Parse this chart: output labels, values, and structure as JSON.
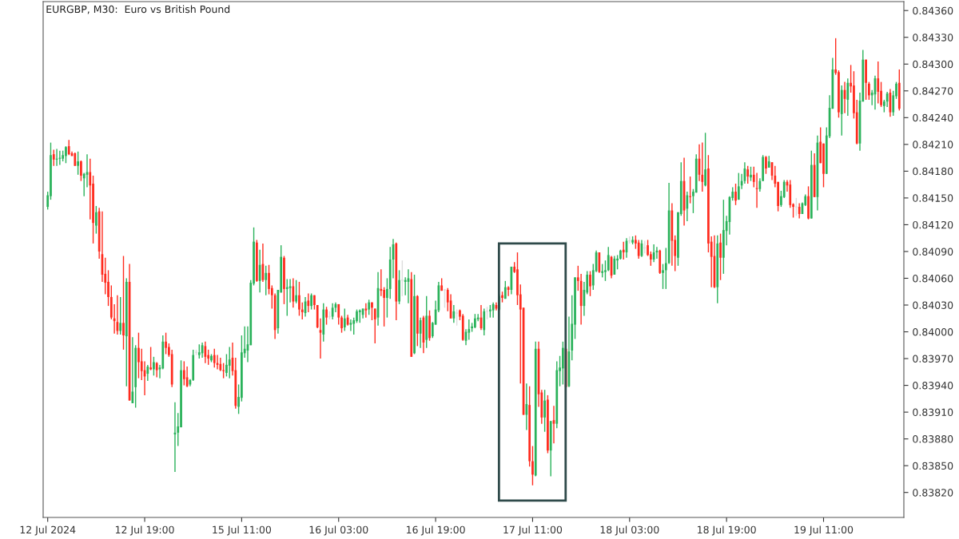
{
  "chart_data": {
    "type": "candlestick",
    "title": "EURGBP, M30:  Euro vs British Pound",
    "categories": [
      "12 Jul 2024",
      null,
      null,
      null,
      null,
      null,
      null,
      null,
      null,
      null,
      null,
      null,
      null,
      null,
      null,
      null,
      null,
      null,
      null,
      null,
      null,
      null,
      null,
      null,
      null,
      null,
      null,
      null,
      null,
      null,
      null,
      null,
      "12 Jul 19:00",
      null,
      null,
      null,
      null,
      null,
      null,
      null,
      null,
      null,
      null,
      null,
      null,
      null,
      null,
      null,
      null,
      null,
      null,
      null,
      null,
      null,
      null,
      null,
      null,
      null,
      null,
      null,
      null,
      null,
      null,
      null,
      "15 Jul 11:00",
      null,
      null,
      null,
      null,
      null,
      null,
      null,
      null,
      null,
      null,
      null,
      null,
      null,
      null,
      null,
      null,
      null,
      null,
      null,
      null,
      null,
      null,
      null,
      null,
      null,
      null,
      null,
      null,
      null,
      null,
      null,
      "16 Jul 03:00",
      null,
      null,
      null,
      null,
      null,
      null,
      null,
      null,
      null,
      null,
      null,
      null,
      null,
      null,
      null,
      null,
      null,
      null,
      null,
      null,
      null,
      null,
      null,
      null,
      null,
      null,
      null,
      null,
      null,
      null,
      null,
      "16 Jul 19:00",
      null,
      null,
      null,
      null,
      null,
      null,
      null,
      null,
      null,
      null,
      null,
      null,
      null,
      null,
      null,
      null,
      null,
      null,
      null,
      null,
      null,
      null,
      null,
      null,
      null,
      null,
      null,
      null,
      null,
      null,
      null,
      "17 Jul 11:00",
      null,
      null,
      null,
      null,
      null,
      null,
      null,
      null,
      null,
      null,
      null,
      null,
      null,
      null,
      null,
      null,
      null,
      null,
      null,
      null,
      null,
      null,
      null,
      null,
      null,
      null,
      null,
      null,
      null,
      null,
      null,
      "18 Jul 03:00",
      null,
      null,
      null,
      null,
      null,
      null,
      null,
      null,
      null,
      null,
      null,
      null,
      null,
      null,
      null,
      null,
      null,
      null,
      null,
      null,
      null,
      null,
      null,
      null,
      null,
      null,
      null,
      null,
      null,
      null,
      null,
      "18 Jul 19:00",
      null,
      null,
      null,
      null,
      null,
      null,
      null,
      null,
      null,
      null,
      null,
      null,
      null,
      null,
      null,
      null,
      null,
      null,
      null,
      null,
      null,
      null,
      null,
      null,
      null,
      null,
      null,
      null,
      null,
      null,
      null,
      "19 Jul 11:00",
      null,
      null,
      null,
      null,
      null,
      null,
      null,
      null,
      null,
      null,
      null,
      null,
      null,
      null,
      null,
      null,
      null,
      null,
      null,
      null,
      null,
      null,
      null,
      null,
      null
    ],
    "ohlc": [
      [
        0.8414,
        0.84157,
        0.84137,
        0.84153
      ],
      [
        0.84152,
        0.84212,
        0.84148,
        0.84198
      ],
      [
        0.84199,
        0.84204,
        0.84186,
        0.84193
      ],
      [
        0.84193,
        0.84205,
        0.84186,
        0.84194
      ],
      [
        0.84194,
        0.84203,
        0.84187,
        0.84195
      ],
      [
        0.84194,
        0.84203,
        0.84191,
        0.84198
      ],
      [
        0.84197,
        0.84208,
        0.84189,
        0.84207
      ],
      [
        0.84208,
        0.84215,
        0.84198,
        0.84199
      ],
      [
        0.842,
        0.84202,
        0.84197,
        0.84197
      ],
      [
        0.842,
        0.84201,
        0.84186,
        0.84186
      ],
      [
        0.84186,
        0.84202,
        0.84176,
        0.84191
      ],
      [
        0.84191,
        0.84192,
        0.84169,
        0.84175
      ],
      [
        0.84172,
        0.84178,
        0.84152,
        0.84177
      ],
      [
        0.84176,
        0.84199,
        0.84162,
        0.84179
      ],
      [
        0.84179,
        0.84194,
        0.84126,
        0.84164
      ],
      [
        0.84166,
        0.84175,
        0.84099,
        0.84122
      ],
      [
        0.84119,
        0.84141,
        0.8411,
        0.84134
      ],
      [
        0.84135,
        0.84139,
        0.84082,
        0.8409
      ],
      [
        0.84087,
        0.84135,
        0.84056,
        0.84064
      ],
      [
        0.84065,
        0.84083,
        0.84042,
        0.84055
      ],
      [
        0.84056,
        0.84069,
        0.84029,
        0.84039
      ],
      [
        0.84039,
        0.84052,
        0.84014,
        0.84016
      ],
      [
        0.84015,
        0.84031,
        0.83998,
        0.84012
      ],
      [
        0.84011,
        0.84041,
        0.83997,
        0.84001
      ],
      [
        0.84001,
        0.84039,
        0.83997,
        0.8401
      ],
      [
        0.8401,
        0.84085,
        0.8398,
        0.83996
      ],
      [
        0.83995,
        0.8406,
        0.83939,
        0.84056
      ],
      [
        0.84056,
        0.84076,
        0.83923,
        0.83923
      ],
      [
        0.8392,
        0.83994,
        0.8392,
        0.83933
      ],
      [
        0.83938,
        0.83985,
        0.83915,
        0.83982
      ],
      [
        0.83982,
        0.83999,
        0.83948,
        0.83966
      ],
      [
        0.83967,
        0.83981,
        0.83946,
        0.83956
      ],
      [
        0.83957,
        0.83967,
        0.83929,
        0.8395
      ],
      [
        0.83953,
        0.83963,
        0.83945,
        0.83961
      ],
      [
        0.8396,
        0.83983,
        0.83957,
        0.83958
      ],
      [
        0.83958,
        0.83972,
        0.83951,
        0.83966
      ],
      [
        0.83965,
        0.83966,
        0.83949,
        0.83957
      ],
      [
        0.83958,
        0.83963,
        0.83948,
        0.8396
      ],
      [
        0.83959,
        0.83996,
        0.83958,
        0.83989
      ],
      [
        0.83989,
        0.83999,
        0.83975,
        0.83982
      ],
      [
        0.83983,
        0.83987,
        0.83972,
        0.83974
      ],
      [
        0.83975,
        0.8398,
        0.83938,
        0.83941
      ],
      [
        0.83885,
        0.83921,
        0.83843,
        0.83887
      ],
      [
        0.83887,
        0.83909,
        0.83872,
        0.83894
      ],
      [
        0.83893,
        0.83968,
        0.83893,
        0.83957
      ],
      [
        0.83957,
        0.83967,
        0.8394,
        0.83947
      ],
      [
        0.83949,
        0.83961,
        0.83938,
        0.83939
      ],
      [
        0.83941,
        0.83947,
        0.83939,
        0.83946
      ],
      [
        0.83946,
        0.8398,
        0.83945,
        0.83974
      ],
      [
        0.83977,
        0.8398,
        0.83974,
        0.83977
      ],
      [
        0.83974,
        0.83986,
        0.8397,
        0.83977
      ],
      [
        0.83976,
        0.83988,
        0.83971,
        0.83985
      ],
      [
        0.83984,
        0.83989,
        0.83965,
        0.83972
      ],
      [
        0.83974,
        0.8398,
        0.83963,
        0.8397
      ],
      [
        0.83968,
        0.83975,
        0.83966,
        0.83973
      ],
      [
        0.83974,
        0.83981,
        0.8396,
        0.83965
      ],
      [
        0.83965,
        0.83974,
        0.83958,
        0.83963
      ],
      [
        0.83964,
        0.83971,
        0.83956,
        0.83957
      ],
      [
        0.83957,
        0.83965,
        0.83948,
        0.83956
      ],
      [
        0.83954,
        0.83975,
        0.8395,
        0.83963
      ],
      [
        0.83962,
        0.83983,
        0.83948,
        0.83969
      ],
      [
        0.83971,
        0.83988,
        0.83951,
        0.83956
      ],
      [
        0.83957,
        0.83971,
        0.83914,
        0.83917
      ],
      [
        0.83916,
        0.83941,
        0.83908,
        0.83927
      ],
      [
        0.83926,
        0.83996,
        0.83922,
        0.83977
      ],
      [
        0.83976,
        0.84006,
        0.83971,
        0.83981
      ],
      [
        0.83979,
        0.84006,
        0.83966,
        0.83986
      ],
      [
        0.83985,
        0.84058,
        0.83985,
        0.84055
      ],
      [
        0.84054,
        0.84117,
        0.84052,
        0.84101
      ],
      [
        0.841,
        0.84103,
        0.84056,
        0.84057
      ],
      [
        0.84057,
        0.84092,
        0.84044,
        0.84075
      ],
      [
        0.84076,
        0.84099,
        0.84056,
        0.84058
      ],
      [
        0.84058,
        0.84074,
        0.84041,
        0.84066
      ],
      [
        0.84066,
        0.84075,
        0.84042,
        0.84048
      ],
      [
        0.84049,
        0.84052,
        0.84026,
        0.84041
      ],
      [
        0.84041,
        0.84043,
        0.83992,
        0.84002
      ],
      [
        0.84004,
        0.84047,
        0.83998,
        0.84047
      ],
      [
        0.84044,
        0.84097,
        0.84044,
        0.84084
      ],
      [
        0.84083,
        0.84085,
        0.84031,
        0.84048
      ],
      [
        0.84048,
        0.84059,
        0.84018,
        0.8405
      ],
      [
        0.84049,
        0.84059,
        0.84033,
        0.84051
      ],
      [
        0.84051,
        0.8406,
        0.84027,
        0.84034
      ],
      [
        0.84034,
        0.84058,
        0.84032,
        0.84041
      ],
      [
        0.84041,
        0.84056,
        0.84018,
        0.84025
      ],
      [
        0.84025,
        0.84033,
        0.84014,
        0.84022
      ],
      [
        0.84021,
        0.84039,
        0.84017,
        0.84034
      ],
      [
        0.84035,
        0.84043,
        0.84022,
        0.84029
      ],
      [
        0.84029,
        0.84043,
        0.84025,
        0.84041
      ],
      [
        0.84041,
        0.84041,
        0.84025,
        0.8403
      ],
      [
        0.8403,
        0.8403,
        0.84004,
        0.84005
      ],
      [
        0.84002,
        0.84015,
        0.8397,
        0.83999
      ],
      [
        0.83997,
        0.84032,
        0.83989,
        0.84025
      ],
      [
        0.84025,
        0.84028,
        0.84008,
        0.84016
      ],
      [
        0.84017,
        0.84023,
        0.84014,
        0.84017
      ],
      [
        0.84017,
        0.84032,
        0.84014,
        0.84027
      ],
      [
        0.84027,
        0.84033,
        0.84022,
        0.84031
      ],
      [
        0.84031,
        0.84031,
        0.84008,
        0.84016
      ],
      [
        0.84016,
        0.84018,
        0.83999,
        0.84004
      ],
      [
        0.84005,
        0.84026,
        0.84001,
        0.84015
      ],
      [
        0.84016,
        0.84019,
        0.84007,
        0.84008
      ],
      [
        0.84008,
        0.84014,
        0.84001,
        0.8401
      ],
      [
        0.84009,
        0.84016,
        0.83997,
        0.84013
      ],
      [
        0.84012,
        0.84025,
        0.8401,
        0.84023
      ],
      [
        0.84022,
        0.84025,
        0.8401,
        0.84024
      ],
      [
        0.84019,
        0.84026,
        0.84015,
        0.84026
      ],
      [
        0.84026,
        0.84032,
        0.84016,
        0.84024
      ],
      [
        0.84025,
        0.84036,
        0.84019,
        0.84033
      ],
      [
        0.84033,
        0.84033,
        0.84013,
        0.84027
      ],
      [
        0.84026,
        0.84026,
        0.83987,
        0.84014
      ],
      [
        0.84016,
        0.84067,
        0.84007,
        0.84049
      ],
      [
        0.84048,
        0.8407,
        0.8404,
        0.84046
      ],
      [
        0.84047,
        0.8405,
        0.84006,
        0.84038
      ],
      [
        0.84038,
        0.8406,
        0.84016,
        0.84048
      ],
      [
        0.84048,
        0.84095,
        0.84037,
        0.84081
      ],
      [
        0.84081,
        0.84104,
        0.8406,
        0.84098
      ],
      [
        0.84099,
        0.841,
        0.84013,
        0.84034
      ],
      [
        0.84034,
        0.84069,
        0.84031,
        0.84058
      ],
      [
        0.84058,
        0.8408,
        0.8404,
        0.84058
      ],
      [
        0.84056,
        0.84061,
        0.84041,
        0.84058
      ],
      [
        0.84056,
        0.8407,
        0.84032,
        0.8406
      ],
      [
        0.84059,
        0.84067,
        0.83972,
        0.83972
      ],
      [
        0.83976,
        0.84064,
        0.83975,
        0.8404
      ],
      [
        0.8404,
        0.84041,
        0.83984,
        0.83998
      ],
      [
        0.83998,
        0.84016,
        0.83982,
        0.84013
      ],
      [
        0.84016,
        0.84018,
        0.83976,
        0.83988
      ],
      [
        0.83991,
        0.8404,
        0.83982,
        0.84018
      ],
      [
        0.84018,
        0.84024,
        0.8399,
        0.83993
      ],
      [
        0.83995,
        0.84011,
        0.83993,
        0.8401
      ],
      [
        0.84008,
        0.84035,
        0.84008,
        0.84025
      ],
      [
        0.84024,
        0.84056,
        0.84022,
        0.84052
      ],
      [
        0.84052,
        0.8406,
        0.84046,
        0.84046
      ],
      [
        0.84047,
        0.84048,
        0.84027,
        0.84047
      ],
      [
        0.84047,
        0.84049,
        0.84023,
        0.84033
      ],
      [
        0.84035,
        0.84042,
        0.84015,
        0.84015
      ],
      [
        0.84015,
        0.8403,
        0.8401,
        0.84023
      ],
      [
        0.84021,
        0.84025,
        0.84007,
        0.84021
      ],
      [
        0.84024,
        0.84025,
        0.84013,
        0.84017
      ],
      [
        0.84018,
        0.8402,
        0.8399,
        0.83991
      ],
      [
        0.8399,
        0.84003,
        0.83985,
        0.84
      ],
      [
        0.83999,
        0.84014,
        0.83991,
        0.84003
      ],
      [
        0.84004,
        0.8401,
        0.84,
        0.84006
      ],
      [
        0.84005,
        0.8402,
        0.84004,
        0.84015
      ],
      [
        0.84014,
        0.8402,
        0.84012,
        0.84016
      ],
      [
        0.84016,
        0.8403,
        0.84002,
        0.84004
      ],
      [
        0.84002,
        0.84026,
        0.83996,
        0.84023
      ],
      [
        0.84023,
        0.84028,
        0.84014,
        0.84023
      ],
      [
        0.84023,
        0.8403,
        0.84016,
        0.84025
      ],
      [
        0.84024,
        0.84033,
        0.84016,
        0.84031
      ],
      [
        0.8403,
        0.84033,
        0.84024,
        0.84026
      ],
      [
        0.84025,
        0.84042,
        0.84024,
        0.8404
      ],
      [
        0.84041,
        0.84045,
        0.84033,
        0.84038
      ],
      [
        0.84037,
        0.84057,
        0.84037,
        0.8405
      ],
      [
        0.8405,
        0.84051,
        0.8404,
        0.84047
      ],
      [
        0.84047,
        0.84073,
        0.84042,
        0.84073
      ],
      [
        0.84073,
        0.84078,
        0.84066,
        0.84067
      ],
      [
        0.8407,
        0.84089,
        0.8403,
        0.84041
      ],
      [
        0.84042,
        0.84053,
        0.83942,
        0.84025
      ],
      [
        0.84027,
        0.84027,
        0.83907,
        0.83907
      ],
      [
        0.83907,
        0.83942,
        0.8389,
        0.83919
      ],
      [
        0.83918,
        0.83939,
        0.83849,
        0.83855
      ],
      [
        0.83855,
        0.83872,
        0.83828,
        0.8384
      ],
      [
        0.83839,
        0.83989,
        0.83838,
        0.83981
      ],
      [
        0.83981,
        0.83989,
        0.83916,
        0.8393
      ],
      [
        0.83932,
        0.83935,
        0.83897,
        0.83904
      ],
      [
        0.83904,
        0.83935,
        0.83888,
        0.83923
      ],
      [
        0.83924,
        0.83929,
        0.83864,
        0.83867
      ],
      [
        0.83867,
        0.839,
        0.83838,
        0.839
      ],
      [
        0.83901,
        0.83917,
        0.83875,
        0.83897
      ],
      [
        0.83897,
        0.83967,
        0.83892,
        0.83957
      ],
      [
        0.83956,
        0.83973,
        0.83939,
        0.8396
      ],
      [
        0.83959,
        0.83989,
        0.83941,
        0.83982
      ],
      [
        0.83981,
        0.83981,
        0.83938,
        0.83938
      ],
      [
        0.83939,
        0.84017,
        0.83938,
        0.83978
      ],
      [
        0.83979,
        0.84041,
        0.83968,
        0.84009
      ],
      [
        0.84008,
        0.84061,
        0.83992,
        0.84061
      ],
      [
        0.84061,
        0.84074,
        0.84046,
        0.84057
      ],
      [
        0.84057,
        0.84065,
        0.84008,
        0.84029
      ],
      [
        0.84029,
        0.84056,
        0.84018,
        0.84047
      ],
      [
        0.84044,
        0.84068,
        0.84042,
        0.84064
      ],
      [
        0.84064,
        0.84068,
        0.8404,
        0.84051
      ],
      [
        0.84052,
        0.84076,
        0.84047,
        0.84069
      ],
      [
        0.84068,
        0.84091,
        0.84067,
        0.84089
      ],
      [
        0.84089,
        0.84089,
        0.84066,
        0.84067
      ],
      [
        0.84066,
        0.84076,
        0.84061,
        0.84068
      ],
      [
        0.84067,
        0.8408,
        0.84057,
        0.84069
      ],
      [
        0.84069,
        0.84095,
        0.84068,
        0.84086
      ],
      [
        0.84084,
        0.84085,
        0.8406,
        0.84063
      ],
      [
        0.84064,
        0.84085,
        0.84064,
        0.84082
      ],
      [
        0.8408,
        0.84086,
        0.8407,
        0.84082
      ],
      [
        0.84082,
        0.84092,
        0.84081,
        0.84091
      ],
      [
        0.84092,
        0.84101,
        0.84081,
        0.84089
      ],
      [
        0.84089,
        0.84105,
        0.84083,
        0.84102
      ],
      [
        0.84102,
        0.84107,
        0.84099,
        0.84102
      ],
      [
        0.841,
        0.84107,
        0.84098,
        0.84103
      ],
      [
        0.84103,
        0.84108,
        0.84093,
        0.84099
      ],
      [
        0.841,
        0.84103,
        0.84082,
        0.84085
      ],
      [
        0.84085,
        0.84103,
        0.84084,
        0.84099
      ],
      [
        0.84094,
        0.84102,
        0.84088,
        0.84094
      ],
      [
        0.84097,
        0.84103,
        0.84085,
        0.84086
      ],
      [
        0.84087,
        0.8409,
        0.84074,
        0.84081
      ],
      [
        0.84081,
        0.84098,
        0.84078,
        0.84089
      ],
      [
        0.84089,
        0.84095,
        0.84082,
        0.84091
      ],
      [
        0.84091,
        0.84092,
        0.84065,
        0.84066
      ],
      [
        0.84066,
        0.84076,
        0.84048,
        0.84069
      ],
      [
        0.84069,
        0.84094,
        0.84048,
        0.84077
      ],
      [
        0.84077,
        0.84167,
        0.84076,
        0.84136
      ],
      [
        0.84136,
        0.84144,
        0.84074,
        0.84102
      ],
      [
        0.84103,
        0.84108,
        0.84068,
        0.84085
      ],
      [
        0.84083,
        0.84134,
        0.84074,
        0.84134
      ],
      [
        0.84132,
        0.8419,
        0.8413,
        0.84169
      ],
      [
        0.84169,
        0.84195,
        0.84119,
        0.84136
      ],
      [
        0.84138,
        0.84157,
        0.84124,
        0.84153
      ],
      [
        0.84152,
        0.84174,
        0.84144,
        0.84151
      ],
      [
        0.84152,
        0.8416,
        0.84133,
        0.84157
      ],
      [
        0.84156,
        0.84199,
        0.84156,
        0.84194
      ],
      [
        0.84194,
        0.8421,
        0.84169,
        0.84176
      ],
      [
        0.84176,
        0.84212,
        0.84157,
        0.84168
      ],
      [
        0.84164,
        0.84223,
        0.84163,
        0.84182
      ],
      [
        0.84183,
        0.84198,
        0.84089,
        0.84099
      ],
      [
        0.84101,
        0.84107,
        0.8405,
        0.84084
      ],
      [
        0.84085,
        0.84108,
        0.84049,
        0.8405
      ],
      [
        0.8405,
        0.84108,
        0.84032,
        0.84099
      ],
      [
        0.841,
        0.8411,
        0.84058,
        0.84083
      ],
      [
        0.84083,
        0.84148,
        0.84065,
        0.84114
      ],
      [
        0.84113,
        0.8413,
        0.84097,
        0.84124
      ],
      [
        0.84123,
        0.84152,
        0.84109,
        0.84151
      ],
      [
        0.8415,
        0.84162,
        0.84147,
        0.84157
      ],
      [
        0.84157,
        0.84166,
        0.84142,
        0.84147
      ],
      [
        0.84148,
        0.84178,
        0.84148,
        0.84163
      ],
      [
        0.84164,
        0.84177,
        0.8416,
        0.84169
      ],
      [
        0.84169,
        0.8419,
        0.84166,
        0.84183
      ],
      [
        0.84182,
        0.84186,
        0.84166,
        0.84174
      ],
      [
        0.84173,
        0.84185,
        0.84169,
        0.84176
      ],
      [
        0.84176,
        0.84185,
        0.84162,
        0.84168
      ],
      [
        0.84161,
        0.84178,
        0.84139,
        0.8416
      ],
      [
        0.8416,
        0.84172,
        0.84157,
        0.84169
      ],
      [
        0.84169,
        0.84198,
        0.84169,
        0.84196
      ],
      [
        0.84196,
        0.84197,
        0.84177,
        0.84183
      ],
      [
        0.84184,
        0.84197,
        0.84184,
        0.84191
      ],
      [
        0.8419,
        0.8419,
        0.8417,
        0.84175
      ],
      [
        0.84175,
        0.84186,
        0.84162,
        0.84166
      ],
      [
        0.84168,
        0.84168,
        0.84135,
        0.84141
      ],
      [
        0.84142,
        0.84158,
        0.8414,
        0.84152
      ],
      [
        0.84151,
        0.8417,
        0.8415,
        0.84168
      ],
      [
        0.84168,
        0.8417,
        0.84157,
        0.84164
      ],
      [
        0.84165,
        0.8417,
        0.84139,
        0.84142
      ],
      [
        0.84143,
        0.84144,
        0.84128,
        0.8414
      ],
      [
        0.8414,
        0.8415,
        0.8413,
        0.8414
      ],
      [
        0.8414,
        0.84144,
        0.84127,
        0.84132
      ],
      [
        0.84132,
        0.84145,
        0.84132,
        0.84144
      ],
      [
        0.84142,
        0.84154,
        0.84141,
        0.84152
      ],
      [
        0.84152,
        0.84163,
        0.84126,
        0.84127
      ],
      [
        0.84127,
        0.84203,
        0.84127,
        0.84187
      ],
      [
        0.84187,
        0.842,
        0.84151,
        0.84151
      ],
      [
        0.84151,
        0.8422,
        0.84136,
        0.84212
      ],
      [
        0.84213,
        0.84229,
        0.84189,
        0.84189
      ],
      [
        0.84211,
        0.84211,
        0.84162,
        0.84177
      ],
      [
        0.84177,
        0.84229,
        0.84177,
        0.8422
      ],
      [
        0.84219,
        0.84265,
        0.84217,
        0.84251
      ],
      [
        0.8425,
        0.84307,
        0.8425,
        0.84294
      ],
      [
        0.84294,
        0.84329,
        0.84288,
        0.8429
      ],
      [
        0.84291,
        0.84293,
        0.8424,
        0.84246
      ],
      [
        0.84244,
        0.84276,
        0.8422,
        0.84271
      ],
      [
        0.84271,
        0.8428,
        0.84245,
        0.84261
      ],
      [
        0.8426,
        0.84284,
        0.84242,
        0.84279
      ],
      [
        0.84279,
        0.84299,
        0.84268,
        0.84275
      ],
      [
        0.84276,
        0.84292,
        0.84239,
        0.84245
      ],
      [
        0.84246,
        0.8426,
        0.8421,
        0.84211
      ],
      [
        0.84211,
        0.84268,
        0.84203,
        0.84259
      ],
      [
        0.84258,
        0.84316,
        0.84258,
        0.84305
      ],
      [
        0.84305,
        0.84305,
        0.8426,
        0.84279
      ],
      [
        0.84278,
        0.8428,
        0.8426,
        0.84265
      ],
      [
        0.84265,
        0.84271,
        0.84254,
        0.84268
      ],
      [
        0.84266,
        0.84287,
        0.84249,
        0.84284
      ],
      [
        0.84284,
        0.84303,
        0.84256,
        0.84269
      ],
      [
        0.8427,
        0.8428,
        0.84252,
        0.84254
      ],
      [
        0.84253,
        0.8426,
        0.84246,
        0.84258
      ],
      [
        0.84258,
        0.84269,
        0.84252,
        0.84267
      ],
      [
        0.84268,
        0.84272,
        0.84241,
        0.84246
      ],
      [
        0.84246,
        0.8427,
        0.84242,
        0.84265
      ],
      [
        0.84264,
        0.8428,
        0.84261,
        0.84278
      ],
      [
        0.84279,
        0.84294,
        0.84248,
        0.8425
      ]
    ],
    "colors": [
      "#2ab25a",
      "#2ab25a",
      "#ff2b1e",
      "#2ab25a",
      "#2ab25a",
      "#2ab25a",
      "#2ab25a",
      "#ff2b1e",
      "#ff2b1e",
      "#ff2b1e",
      "#2ab25a",
      "#ff2b1e",
      "#2ab25a",
      "#2ab25a",
      "#ff2b1e",
      "#ff2b1e",
      "#2ab25a",
      "#ff2b1e",
      "#ff2b1e",
      "#ff2b1e",
      "#ff2b1e",
      "#ff2b1e",
      "#ff2b1e",
      "#ff2b1e",
      "#2ab25a",
      "#ff2b1e",
      "#2ab25a",
      "#ff2b1e",
      "#2ab25a",
      "#2ab25a",
      "#ff2b1e",
      "#ff2b1e",
      "#ff2b1e",
      "#2ab25a",
      "#ff2b1e",
      "#2ab25a",
      "#ff2b1e",
      "#2ab25a",
      "#2ab25a",
      "#ff2b1e",
      "#ff2b1e",
      "#ff2b1e",
      "#2ab25a",
      "#2ab25a",
      "#2ab25a",
      "#ff2b1e",
      "#ff2b1e",
      "#2ab25a",
      "#2ab25a",
      "#dcdcdc",
      "#2ab25a",
      "#2ab25a",
      "#ff2b1e",
      "#ff2b1e",
      "#2ab25a",
      "#ff2b1e",
      "#ff2b1e",
      "#ff2b1e",
      "#ff2b1e",
      "#2ab25a",
      "#2ab25a",
      "#ff2b1e",
      "#ff2b1e",
      "#2ab25a",
      "#2ab25a",
      "#2ab25a",
      "#2ab25a",
      "#2ab25a",
      "#2ab25a",
      "#ff2b1e",
      "#2ab25a",
      "#ff2b1e",
      "#2ab25a",
      "#ff2b1e",
      "#ff2b1e",
      "#ff2b1e",
      "#2ab25a",
      "#2ab25a",
      "#ff2b1e",
      "#2ab25a",
      "#2ab25a",
      "#ff2b1e",
      "#2ab25a",
      "#ff2b1e",
      "#ff2b1e",
      "#2ab25a",
      "#ff2b1e",
      "#2ab25a",
      "#ff2b1e",
      "#ff2b1e",
      "#ff2b1e",
      "#2ab25a",
      "#ff2b1e",
      "#dcdcdc",
      "#2ab25a",
      "#2ab25a",
      "#ff2b1e",
      "#ff2b1e",
      "#2ab25a",
      "#ff2b1e",
      "#2ab25a",
      "#2ab25a",
      "#2ab25a",
      "#2ab25a",
      "#2ab25a",
      "#ff2b1e",
      "#2ab25a",
      "#ff2b1e",
      "#ff2b1e",
      "#2ab25a",
      "#ff2b1e",
      "#ff2b1e",
      "#2ab25a",
      "#2ab25a",
      "#2ab25a",
      "#ff2b1e",
      "#2ab25a",
      "#dcdcdc",
      "#2ab25a",
      "#2ab25a",
      "#ff2b1e",
      "#2ab25a",
      "#ff2b1e",
      "#2ab25a",
      "#ff2b1e",
      "#2ab25a",
      "#ff2b1e",
      "#2ab25a",
      "#2ab25a",
      "#2ab25a",
      "#ff2b1e",
      "#dcdcdc",
      "#ff2b1e",
      "#ff2b1e",
      "#2ab25a",
      "#dcdcdc",
      "#ff2b1e",
      "#ff2b1e",
      "#2ab25a",
      "#2ab25a",
      "#2ab25a",
      "#2ab25a",
      "#2ab25a",
      "#ff2b1e",
      "#2ab25a",
      "#dcdcdc",
      "#2ab25a",
      "#2ab25a",
      "#ff2b1e",
      "#2ab25a",
      "#ff2b1e",
      "#2ab25a",
      "#ff2b1e",
      "#2ab25a",
      "#ff2b1e",
      "#ff2b1e",
      "#ff2b1e",
      "#ff2b1e",
      "#2ab25a",
      "#ff2b1e",
      "#ff2b1e",
      "#2ab25a",
      "#ff2b1e",
      "#ff2b1e",
      "#2ab25a",
      "#ff2b1e",
      "#2ab25a",
      "#ff2b1e",
      "#2ab25a",
      "#2ab25a",
      "#2ab25a",
      "#ff2b1e",
      "#2ab25a",
      "#2ab25a",
      "#2ab25a",
      "#ff2b1e",
      "#ff2b1e",
      "#2ab25a",
      "#2ab25a",
      "#ff2b1e",
      "#2ab25a",
      "#2ab25a",
      "#ff2b1e",
      "#2ab25a",
      "#2ab25a",
      "#2ab25a",
      "#ff2b1e",
      "#2ab25a",
      "#2ab25a",
      "#2ab25a",
      "#ff2b1e",
      "#2ab25a",
      "#dcdcdc",
      "#2ab25a",
      "#ff2b1e",
      "#ff2b1e",
      "#2ab25a",
      "#dcdcdc",
      "#ff2b1e",
      "#ff2b1e",
      "#2ab25a",
      "#2ab25a",
      "#ff2b1e",
      "#2ab25a",
      "#2ab25a",
      "#2ab25a",
      "#ff2b1e",
      "#ff2b1e",
      "#2ab25a",
      "#2ab25a",
      "#ff2b1e",
      "#2ab25a",
      "#ff2b1e",
      "#2ab25a",
      "#2ab25a",
      "#ff2b1e",
      "#ff2b1e",
      "#2ab25a",
      "#ff2b1e",
      "#ff2b1e",
      "#ff2b1e",
      "#2ab25a",
      "#ff2b1e",
      "#2ab25a",
      "#2ab25a",
      "#2ab25a",
      "#2ab25a",
      "#ff2b1e",
      "#2ab25a",
      "#2ab25a",
      "#2ab25a",
      "#ff2b1e",
      "#2ab25a",
      "#ff2b1e",
      "#ff2b1e",
      "#2ab25a",
      "#2ab25a",
      "#ff2b1e",
      "#2ab25a",
      "#ff2b1e",
      "#ff2b1e",
      "#ff2b1e",
      "#2ab25a",
      "#2ab25a",
      "#ff2b1e",
      "#ff2b1e",
      "#ff2b1e",
      "#dcdcdc",
      "#ff2b1e",
      "#2ab25a",
      "#2ab25a",
      "#ff2b1e",
      "#2ab25a",
      "#ff2b1e",
      "#2ab25a",
      "#ff2b1e",
      "#ff2b1e",
      "#2ab25a",
      "#2ab25a",
      "#2ab25a",
      "#ff2b1e",
      "#ff2b1e",
      "#2ab25a",
      "#ff2b1e",
      "#2ab25a",
      "#ff2b1e",
      "#ff2b1e",
      "#ff2b1e",
      "#2ab25a",
      "#2ab25a",
      "#ff2b1e",
      "#ff2b1e",
      "#2ab25a",
      "#2ab25a",
      "#ff2b1e",
      "#ff2b1e",
      "#2ab25a",
      "#2ab25a",
      "#ff2b1e",
      "#2ab25a",
      "#2ab25a",
      "#ff2b1e"
    ],
    "ylim": [
      0.83792,
      0.8437
    ],
    "yticks": [
      {
        "value": 0.8382,
        "label": "0.83820"
      },
      {
        "value": 0.8385,
        "label": "0.83850"
      },
      {
        "value": 0.8388,
        "label": "0.83880"
      },
      {
        "value": 0.8391,
        "label": "0.83910"
      },
      {
        "value": 0.8394,
        "label": "0.83940"
      },
      {
        "value": 0.8397,
        "label": "0.83970"
      },
      {
        "value": 0.84,
        "label": "0.84000"
      },
      {
        "value": 0.8403,
        "label": "0.84030"
      },
      {
        "value": 0.8406,
        "label": "0.84060"
      },
      {
        "value": 0.8409,
        "label": "0.84090"
      },
      {
        "value": 0.8412,
        "label": "0.84120"
      },
      {
        "value": 0.8415,
        "label": "0.84150"
      },
      {
        "value": 0.8418,
        "label": "0.84180"
      },
      {
        "value": 0.8421,
        "label": "0.84210"
      },
      {
        "value": 0.8424,
        "label": "0.84240"
      },
      {
        "value": 0.8427,
        "label": "0.84270"
      },
      {
        "value": 0.843,
        "label": "0.84300"
      },
      {
        "value": 0.8433,
        "label": "0.84330"
      },
      {
        "value": 0.8436,
        "label": "0.84360"
      }
    ]
  }
}
